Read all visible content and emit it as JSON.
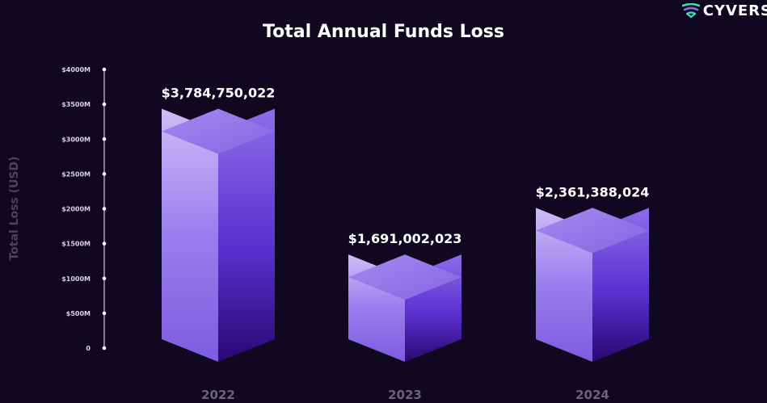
{
  "brand": {
    "name": "CYVERS",
    "logo_icon": "cyvers-logo-icon"
  },
  "chart_data": {
    "type": "bar",
    "title": "Total Annual Funds Loss",
    "ylabel": "Total Loss (USD)",
    "xlabel": "",
    "categories": [
      "2022",
      "2023",
      "2024"
    ],
    "values": [
      3784750022,
      1691002023,
      2361388024
    ],
    "value_labels": [
      "$3,784,750,022",
      "$1,691,002,023",
      "$2,361,388,024"
    ],
    "ylim": [
      0,
      4000000000
    ],
    "yticks": [
      0,
      500000000,
      1000000000,
      1500000000,
      2000000000,
      2500000000,
      3000000000,
      3500000000,
      4000000000
    ],
    "ytick_labels": [
      "0",
      "$500M",
      "$1000M",
      "$1500M",
      "$2000M",
      "$2500M",
      "$3000M",
      "$3500M",
      "$4000M"
    ],
    "grid": false,
    "legend": "none",
    "colors": {
      "bar_top": "#8b6fe0",
      "bar_light": "#c8b8f8",
      "bar_dark": "#2e0a7a"
    }
  }
}
